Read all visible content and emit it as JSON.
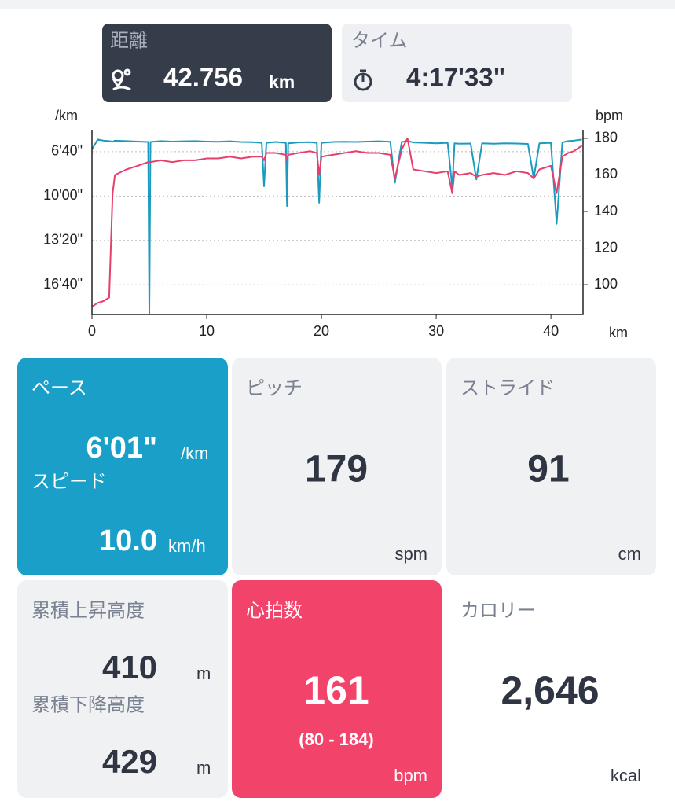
{
  "tabs": {
    "distance": {
      "label": "距離",
      "value": "42.756",
      "unit": "km"
    },
    "time": {
      "label": "タイム",
      "value": "4:17'33\""
    }
  },
  "chart": {
    "type": "line",
    "y_label": "/km",
    "y2_label": "bpm",
    "x_label": "km",
    "x": [
      0,
      0.5,
      1,
      1.5,
      1.8,
      2,
      3,
      4,
      4.9,
      5,
      5.1,
      6,
      7,
      8,
      9,
      10,
      11,
      12,
      13,
      14,
      14.8,
      15,
      15.2,
      16,
      16.9,
      17,
      17.1,
      18,
      19,
      19.6,
      19.8,
      20,
      21,
      22,
      23,
      24,
      25,
      26,
      26.4,
      27,
      27.5,
      28,
      29,
      30,
      31,
      31.4,
      31.6,
      32,
      33,
      33.5,
      34,
      35,
      36,
      37,
      38,
      38.5,
      39,
      40,
      40.5,
      41,
      41.5,
      42,
      42.7
    ],
    "xlim": [
      0,
      42.8
    ],
    "xticks": [
      0,
      10,
      20,
      30,
      40
    ],
    "ylim": [
      1134,
      301
    ],
    "yticks": [
      {
        "value": 400,
        "label": "6'40\""
      },
      {
        "value": 600,
        "label": "10'00\""
      },
      {
        "value": 800,
        "label": "13'20\""
      },
      {
        "value": 1000,
        "label": "16'40\""
      }
    ],
    "y2lim": [
      83.7,
      184.7
    ],
    "y2ticks": [
      100,
      120,
      140,
      160,
      180
    ],
    "grid": true,
    "series": [
      {
        "color": "#1a9bbf",
        "values": [
          390,
          345,
          350,
          352,
          355,
          350,
          352,
          354,
          356,
          1130,
          356,
          352,
          354,
          353,
          352,
          354,
          355,
          353,
          356,
          357,
          360,
          556,
          360,
          356,
          360,
          645,
          362,
          358,
          357,
          360,
          630,
          360,
          356,
          355,
          356,
          354,
          353,
          355,
          540,
          356,
          352,
          358,
          360,
          362,
          360,
          560,
          362,
          364,
          363,
          525,
          362,
          364,
          362,
          363,
          365,
          520,
          362,
          360,
          725,
          358,
          352,
          350,
          345
        ]
      },
      {
        "color": "#e83e6c",
        "axis": "y2",
        "values": [
          88,
          90,
          91,
          93,
          150,
          160,
          163,
          165,
          167,
          167,
          167,
          168,
          167,
          168,
          168,
          169,
          169,
          170,
          169,
          170,
          170,
          168,
          172,
          172,
          171,
          168,
          171,
          172,
          173,
          172,
          160,
          170,
          171,
          172,
          173,
          172,
          172,
          171,
          158,
          174,
          180,
          163,
          162,
          161,
          162,
          150,
          162,
          160,
          161,
          159,
          160,
          161,
          160,
          162,
          161,
          158,
          163,
          165,
          150,
          170,
          172,
          173,
          176
        ]
      }
    ]
  },
  "stats": {
    "pace": {
      "label": "ペース",
      "value": "6'01\"",
      "unit": "/km",
      "speed_label": "スピード",
      "speed": "10.0",
      "speed_unit": "km/h"
    },
    "pitch": {
      "label": "ピッチ",
      "value": 179,
      "unit": "spm"
    },
    "stride": {
      "label": "ストライド",
      "value": 91,
      "unit": "cm"
    },
    "elevation": {
      "up_label": "累積上昇高度",
      "up": 410,
      "up_unit": "m",
      "down_label": "累積下降高度",
      "down": 429,
      "down_unit": "m"
    },
    "heart_rate": {
      "label": "心拍数",
      "value": 161,
      "range": "(80 - 184)",
      "unit": "bpm"
    },
    "calories": {
      "label": "カロリー",
      "value": "2,646",
      "unit": "kcal"
    }
  }
}
